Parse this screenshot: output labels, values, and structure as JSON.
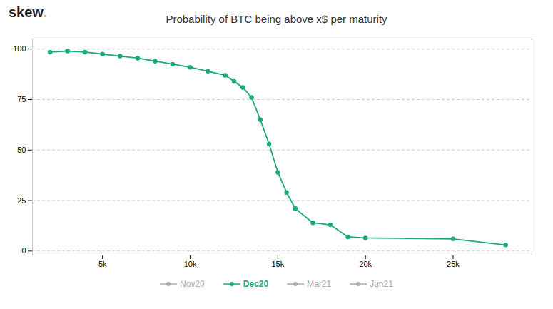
{
  "chart_data": {
    "type": "line",
    "title": "Probability of BTC being above x$ per maturity",
    "annotations": [
      {
        "text": "skew",
        "color": "#222222"
      },
      {
        "text": ".",
        "color": "#f5a623"
      }
    ],
    "x": [
      2000,
      3000,
      4000,
      5000,
      6000,
      7000,
      8000,
      9000,
      10000,
      11000,
      12000,
      12500,
      13000,
      13500,
      14000,
      14500,
      15000,
      15500,
      16000,
      17000,
      18000,
      19000,
      20000,
      25000,
      28000
    ],
    "series": [
      {
        "name": "Nov20",
        "color": "#aaaaaa",
        "marker": "circle",
        "values": [
          null,
          null,
          null,
          null,
          null,
          null,
          null,
          null,
          null,
          null,
          null,
          null,
          null,
          null,
          null,
          null,
          null,
          null,
          null,
          null,
          null,
          null,
          null,
          null,
          null
        ]
      },
      {
        "name": "Dec20",
        "color": "#1aab78",
        "marker": "circle",
        "values": [
          98.5,
          99.0,
          98.5,
          97.5,
          96.5,
          95.5,
          94.0,
          92.5,
          91.0,
          89.0,
          87.0,
          84.0,
          81.0,
          76.0,
          65.0,
          53.0,
          39.0,
          29.0,
          21.0,
          14.0,
          13.0,
          7.0,
          6.5,
          6.0,
          3.0
        ]
      },
      {
        "name": "Mar21",
        "color": "#aaaaaa",
        "marker": "circle",
        "values": [
          null,
          null,
          null,
          null,
          null,
          null,
          null,
          null,
          null,
          null,
          null,
          null,
          null,
          null,
          null,
          null,
          null,
          null,
          null,
          null,
          null,
          null,
          null,
          null,
          null
        ]
      },
      {
        "name": "Jun21",
        "color": "#aaaaaa",
        "marker": "circle",
        "values": [
          null,
          null,
          null,
          null,
          null,
          null,
          null,
          null,
          null,
          null,
          null,
          null,
          null,
          null,
          null,
          null,
          null,
          null,
          null,
          null,
          null,
          null,
          null,
          null,
          null
        ]
      }
    ],
    "xlim": [
      1000,
      29500
    ],
    "xticks": [
      {
        "value": 5000,
        "label": "5k"
      },
      {
        "value": 10000,
        "label": "10k"
      },
      {
        "value": 15000,
        "label": "15k"
      },
      {
        "value": 20000,
        "label": "20k"
      },
      {
        "value": 25000,
        "label": "25k"
      }
    ],
    "ylim": [
      -2,
      105
    ],
    "yticks": [
      0,
      25,
      50,
      75,
      100
    ],
    "grid": true
  }
}
